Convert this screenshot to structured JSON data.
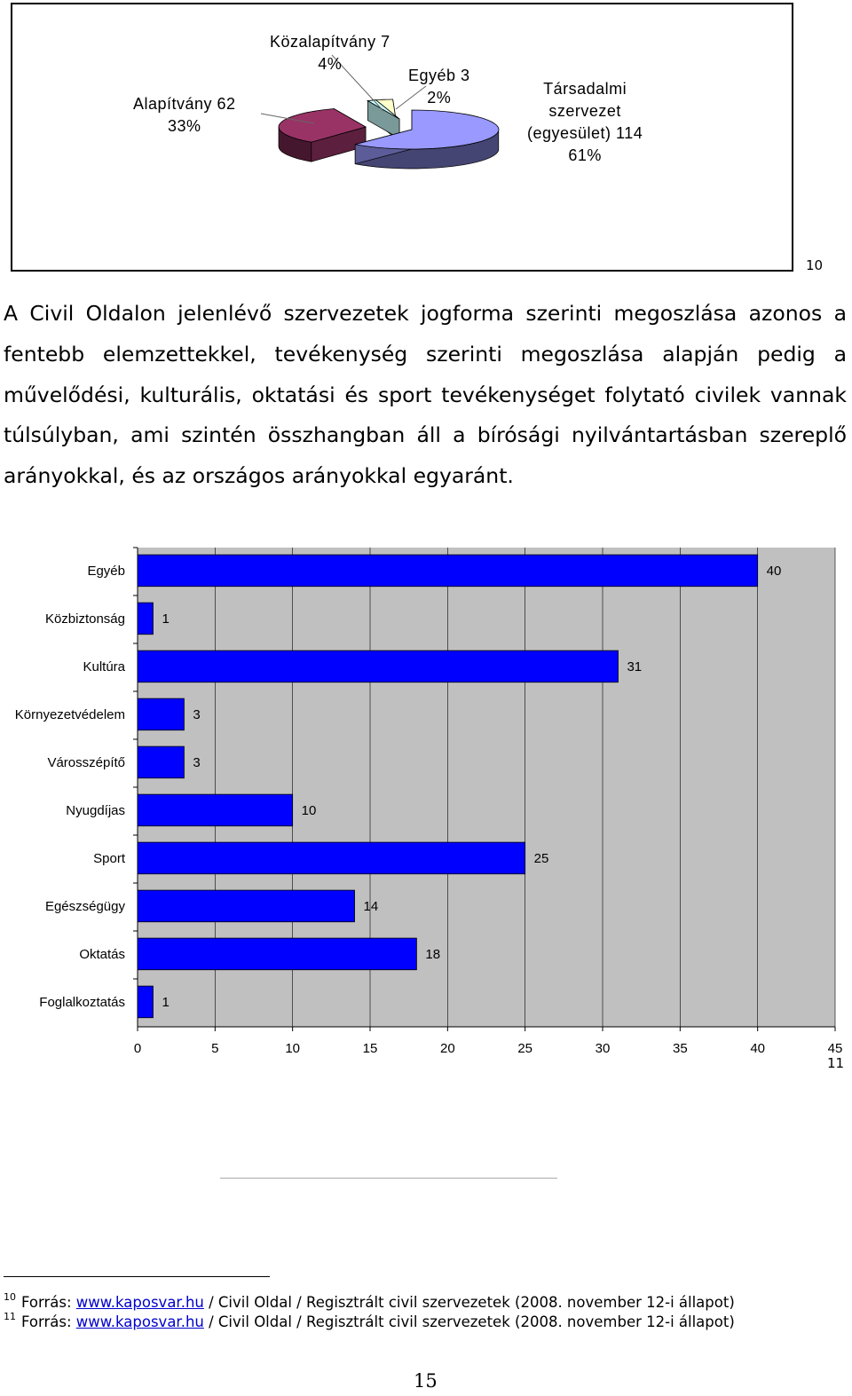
{
  "pie_chart": {
    "slices": [
      {
        "name": "Társadalmi szervezet (egyesület)",
        "value": 114,
        "percent": 61,
        "color": "#9999ff",
        "label_lines": [
          "Társadalmi",
          "szervezet",
          "(egyesület) 114",
          "61%"
        ]
      },
      {
        "name": "Alapítvány",
        "value": 62,
        "percent": 33,
        "color": "#993366",
        "label_lines": [
          "Alapítvány 62",
          "33%"
        ]
      },
      {
        "name": "Közalapítvány",
        "value": 7,
        "percent": 4,
        "color": "#ffffcc",
        "label_lines": [
          "Közalapítvány  7",
          "4%"
        ]
      },
      {
        "name": "Egyéb",
        "value": 3,
        "percent": 2,
        "color": "#ccffff",
        "label_lines": [
          "Egyéb 3",
          "2%"
        ]
      }
    ]
  },
  "footnote_ref_10": "10",
  "paragraph": "A Civil Oldalon jelenlévő szervezetek jogforma szerinti megoszlása azonos a fentebb elemzettekkel, tevékenység szerinti megoszlása alapján pedig a művelődési, kulturális, oktatási és sport tevékenységet folytató civilek vannak túlsúlyban, ami szintén összhangban áll a bírósági nyilvántartásban szereplő arányokkal, és az országos arányokkal egyaránt.",
  "chart_data": {
    "type": "bar",
    "orientation": "horizontal",
    "categories": [
      "Egyéb",
      "Közbiztonság",
      "Kultúra",
      "Környezetvédelem",
      "Városszépítő",
      "Nyugdíjas",
      "Sport",
      "Egészségügy",
      "Oktatás",
      "Foglalkoztatás"
    ],
    "values": [
      40,
      1,
      31,
      3,
      3,
      10,
      25,
      14,
      18,
      1
    ],
    "xlim": [
      0,
      45
    ],
    "xticks": [
      0,
      5,
      10,
      15,
      20,
      25,
      30,
      35,
      40,
      45
    ],
    "grid": true,
    "bar_color": "#0000ff",
    "plot_background": "#c0c0c0",
    "title": "",
    "xlabel": "",
    "ylabel": ""
  },
  "footnote_ref_11": "11",
  "footnotes": [
    {
      "num": "10",
      "prefix": "Forrás: ",
      "link": "www.kaposvar.hu",
      "suffix": " / Civil Oldal / Regisztrált civil szervezetek (2008. november 12-i állapot)"
    },
    {
      "num": "11",
      "prefix": "Forrás: ",
      "link": "www.kaposvar.hu",
      "suffix": " / Civil Oldal / Regisztrált civil szervezetek (2008. november 12-i állapot)"
    }
  ],
  "page_number": "15"
}
